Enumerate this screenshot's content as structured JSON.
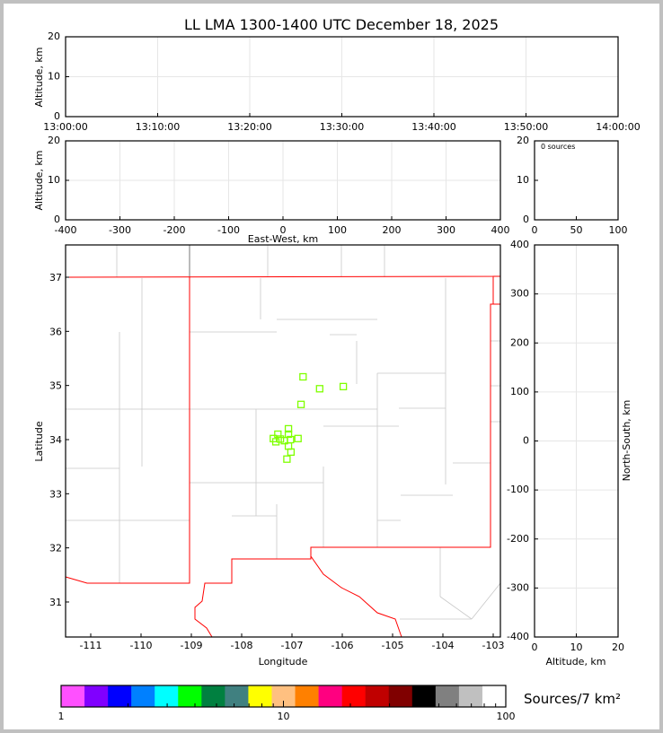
{
  "chart_data": [
    {
      "type": "scatter",
      "panel": "time-height",
      "title": "LL LMA 1300-1400 UTC December 18, 2025",
      "ylabel": "Altitude, km",
      "ylim": [
        0,
        20
      ],
      "yticks": [
        0,
        10,
        20
      ],
      "xticks": [
        "13:00:00",
        "13:10:00",
        "13:20:00",
        "13:30:00",
        "13:40:00",
        "13:50:00",
        "14:00:00"
      ],
      "grid": true,
      "points": []
    },
    {
      "type": "scatter",
      "panel": "east-west-height",
      "xlabel": "East-West, km",
      "ylabel": "Altitude, km",
      "xlim": [
        -400,
        400
      ],
      "ylim": [
        0,
        20
      ],
      "xticks": [
        -400,
        -300,
        -200,
        -100,
        0,
        100,
        200,
        300,
        400
      ],
      "yticks": [
        0,
        10,
        20
      ],
      "grid": true,
      "points": []
    },
    {
      "type": "bar",
      "panel": "altitude-histogram",
      "annotation": "0 sources",
      "xlim": [
        0,
        100
      ],
      "ylim": [
        0,
        20
      ],
      "xticks": [
        0,
        50,
        100
      ],
      "yticks": [
        0,
        10,
        20
      ],
      "values": []
    },
    {
      "type": "scatter",
      "panel": "plan-view",
      "xlabel": "Longitude",
      "ylabel": "Latitude",
      "xlim": [
        -111.5,
        -102.86
      ],
      "ylim": [
        30.35,
        37.6
      ],
      "xticks": [
        -111,
        -110,
        -109,
        -108,
        -107,
        -106,
        -105,
        -104,
        -103
      ],
      "yticks": [
        31,
        32,
        33,
        34,
        35,
        36,
        37
      ],
      "marker_color": "#7fff00",
      "border_color": "#ff0000",
      "county_color": "#c8c8c8",
      "points": [
        {
          "lon": -106.78,
          "lat": 35.16
        },
        {
          "lon": -106.45,
          "lat": 34.94
        },
        {
          "lon": -105.98,
          "lat": 34.98
        },
        {
          "lon": -106.82,
          "lat": 34.65
        },
        {
          "lon": -107.07,
          "lat": 34.2
        },
        {
          "lon": -107.28,
          "lat": 34.1
        },
        {
          "lon": -107.07,
          "lat": 34.1
        },
        {
          "lon": -107.37,
          "lat": 34.02
        },
        {
          "lon": -107.23,
          "lat": 34.01
        },
        {
          "lon": -106.88,
          "lat": 34.02
        },
        {
          "lon": -107.03,
          "lat": 34.0
        },
        {
          "lon": -107.32,
          "lat": 33.96
        },
        {
          "lon": -107.15,
          "lat": 33.98
        },
        {
          "lon": -107.07,
          "lat": 33.88
        },
        {
          "lon": -107.02,
          "lat": 33.77
        },
        {
          "lon": -107.1,
          "lat": 33.64
        }
      ]
    },
    {
      "type": "scatter",
      "panel": "north-south-height",
      "xlabel": "Altitude, km",
      "ylabel": "North-South, km",
      "xlim": [
        0,
        20
      ],
      "ylim": [
        -400,
        400
      ],
      "xticks": [
        0,
        10,
        20
      ],
      "yticks": [
        -400,
        -300,
        -200,
        -100,
        0,
        100,
        200,
        300,
        400
      ],
      "grid": true,
      "points": []
    },
    {
      "type": "colorbar",
      "label": "Sources/7 km²",
      "scale": "log",
      "range": [
        1,
        100
      ],
      "ticklabels": [
        "1",
        "10",
        "100"
      ],
      "colors": [
        "#ff50ff",
        "#8000ff",
        "#0000ff",
        "#0080ff",
        "#00ffff",
        "#00ff00",
        "#008040",
        "#408080",
        "#ffff00",
        "#ffc080",
        "#ff8000",
        "#ff0080",
        "#ff0000",
        "#c00000",
        "#800000",
        "#000000",
        "#808080",
        "#c0c0c0",
        "#ffffff"
      ]
    }
  ]
}
